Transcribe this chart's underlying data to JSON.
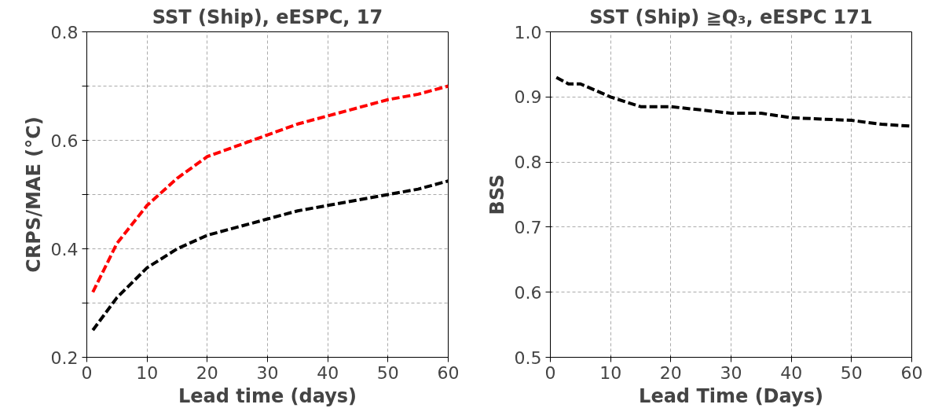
{
  "chart_data": [
    {
      "type": "line",
      "title": "SST (Ship), eESPC, 17",
      "xlabel": "Lead time (days)",
      "ylabel": "CRPS/MAE (°C)",
      "x": [
        1,
        5,
        10,
        15,
        20,
        25,
        30,
        35,
        40,
        45,
        50,
        55,
        60
      ],
      "series": [
        {
          "color": "#000000",
          "values": [
            0.25,
            0.31,
            0.365,
            0.4,
            0.425,
            0.44,
            0.455,
            0.47,
            0.48,
            0.49,
            0.5,
            0.51,
            0.525
          ]
        },
        {
          "color": "#ff0000",
          "values": [
            0.32,
            0.41,
            0.48,
            0.53,
            0.57,
            0.59,
            0.61,
            0.63,
            0.645,
            0.66,
            0.675,
            0.685,
            0.7
          ]
        }
      ],
      "xlim": [
        0,
        60
      ],
      "xticks": [
        0,
        10,
        20,
        30,
        40,
        50,
        60
      ],
      "ylim": [
        0.2,
        0.8
      ],
      "yticks": [
        0.2,
        {
          "value": 0.3,
          "label": null
        },
        0.4,
        {
          "value": 0.5,
          "label": null
        },
        0.6,
        {
          "value": 0.7,
          "label": null
        },
        0.8
      ],
      "grid": true,
      "line_style": "dashed",
      "marker": "none"
    },
    {
      "type": "line",
      "title": "SST (Ship) ≧Q₃, eESPC 171",
      "xlabel": "Lead Time (Days)",
      "ylabel": "BSS",
      "x": [
        1,
        3,
        5,
        10,
        15,
        20,
        25,
        30,
        35,
        40,
        45,
        50,
        55,
        60
      ],
      "series": [
        {
          "color": "#000000",
          "values": [
            0.93,
            0.92,
            0.92,
            0.9,
            0.885,
            0.885,
            0.88,
            0.875,
            0.875,
            0.868,
            0.866,
            0.864,
            0.858,
            0.855
          ]
        }
      ],
      "xlim": [
        0,
        60
      ],
      "xticks": [
        0,
        10,
        20,
        30,
        40,
        50,
        60
      ],
      "ylim": [
        0.5,
        1.0
      ],
      "yticks": [
        0.5,
        0.6,
        0.7,
        0.8,
        0.9,
        {
          "value": 1.0,
          "label": "1.0"
        }
      ],
      "grid": true,
      "line_style": "dashed",
      "marker": "none"
    }
  ]
}
